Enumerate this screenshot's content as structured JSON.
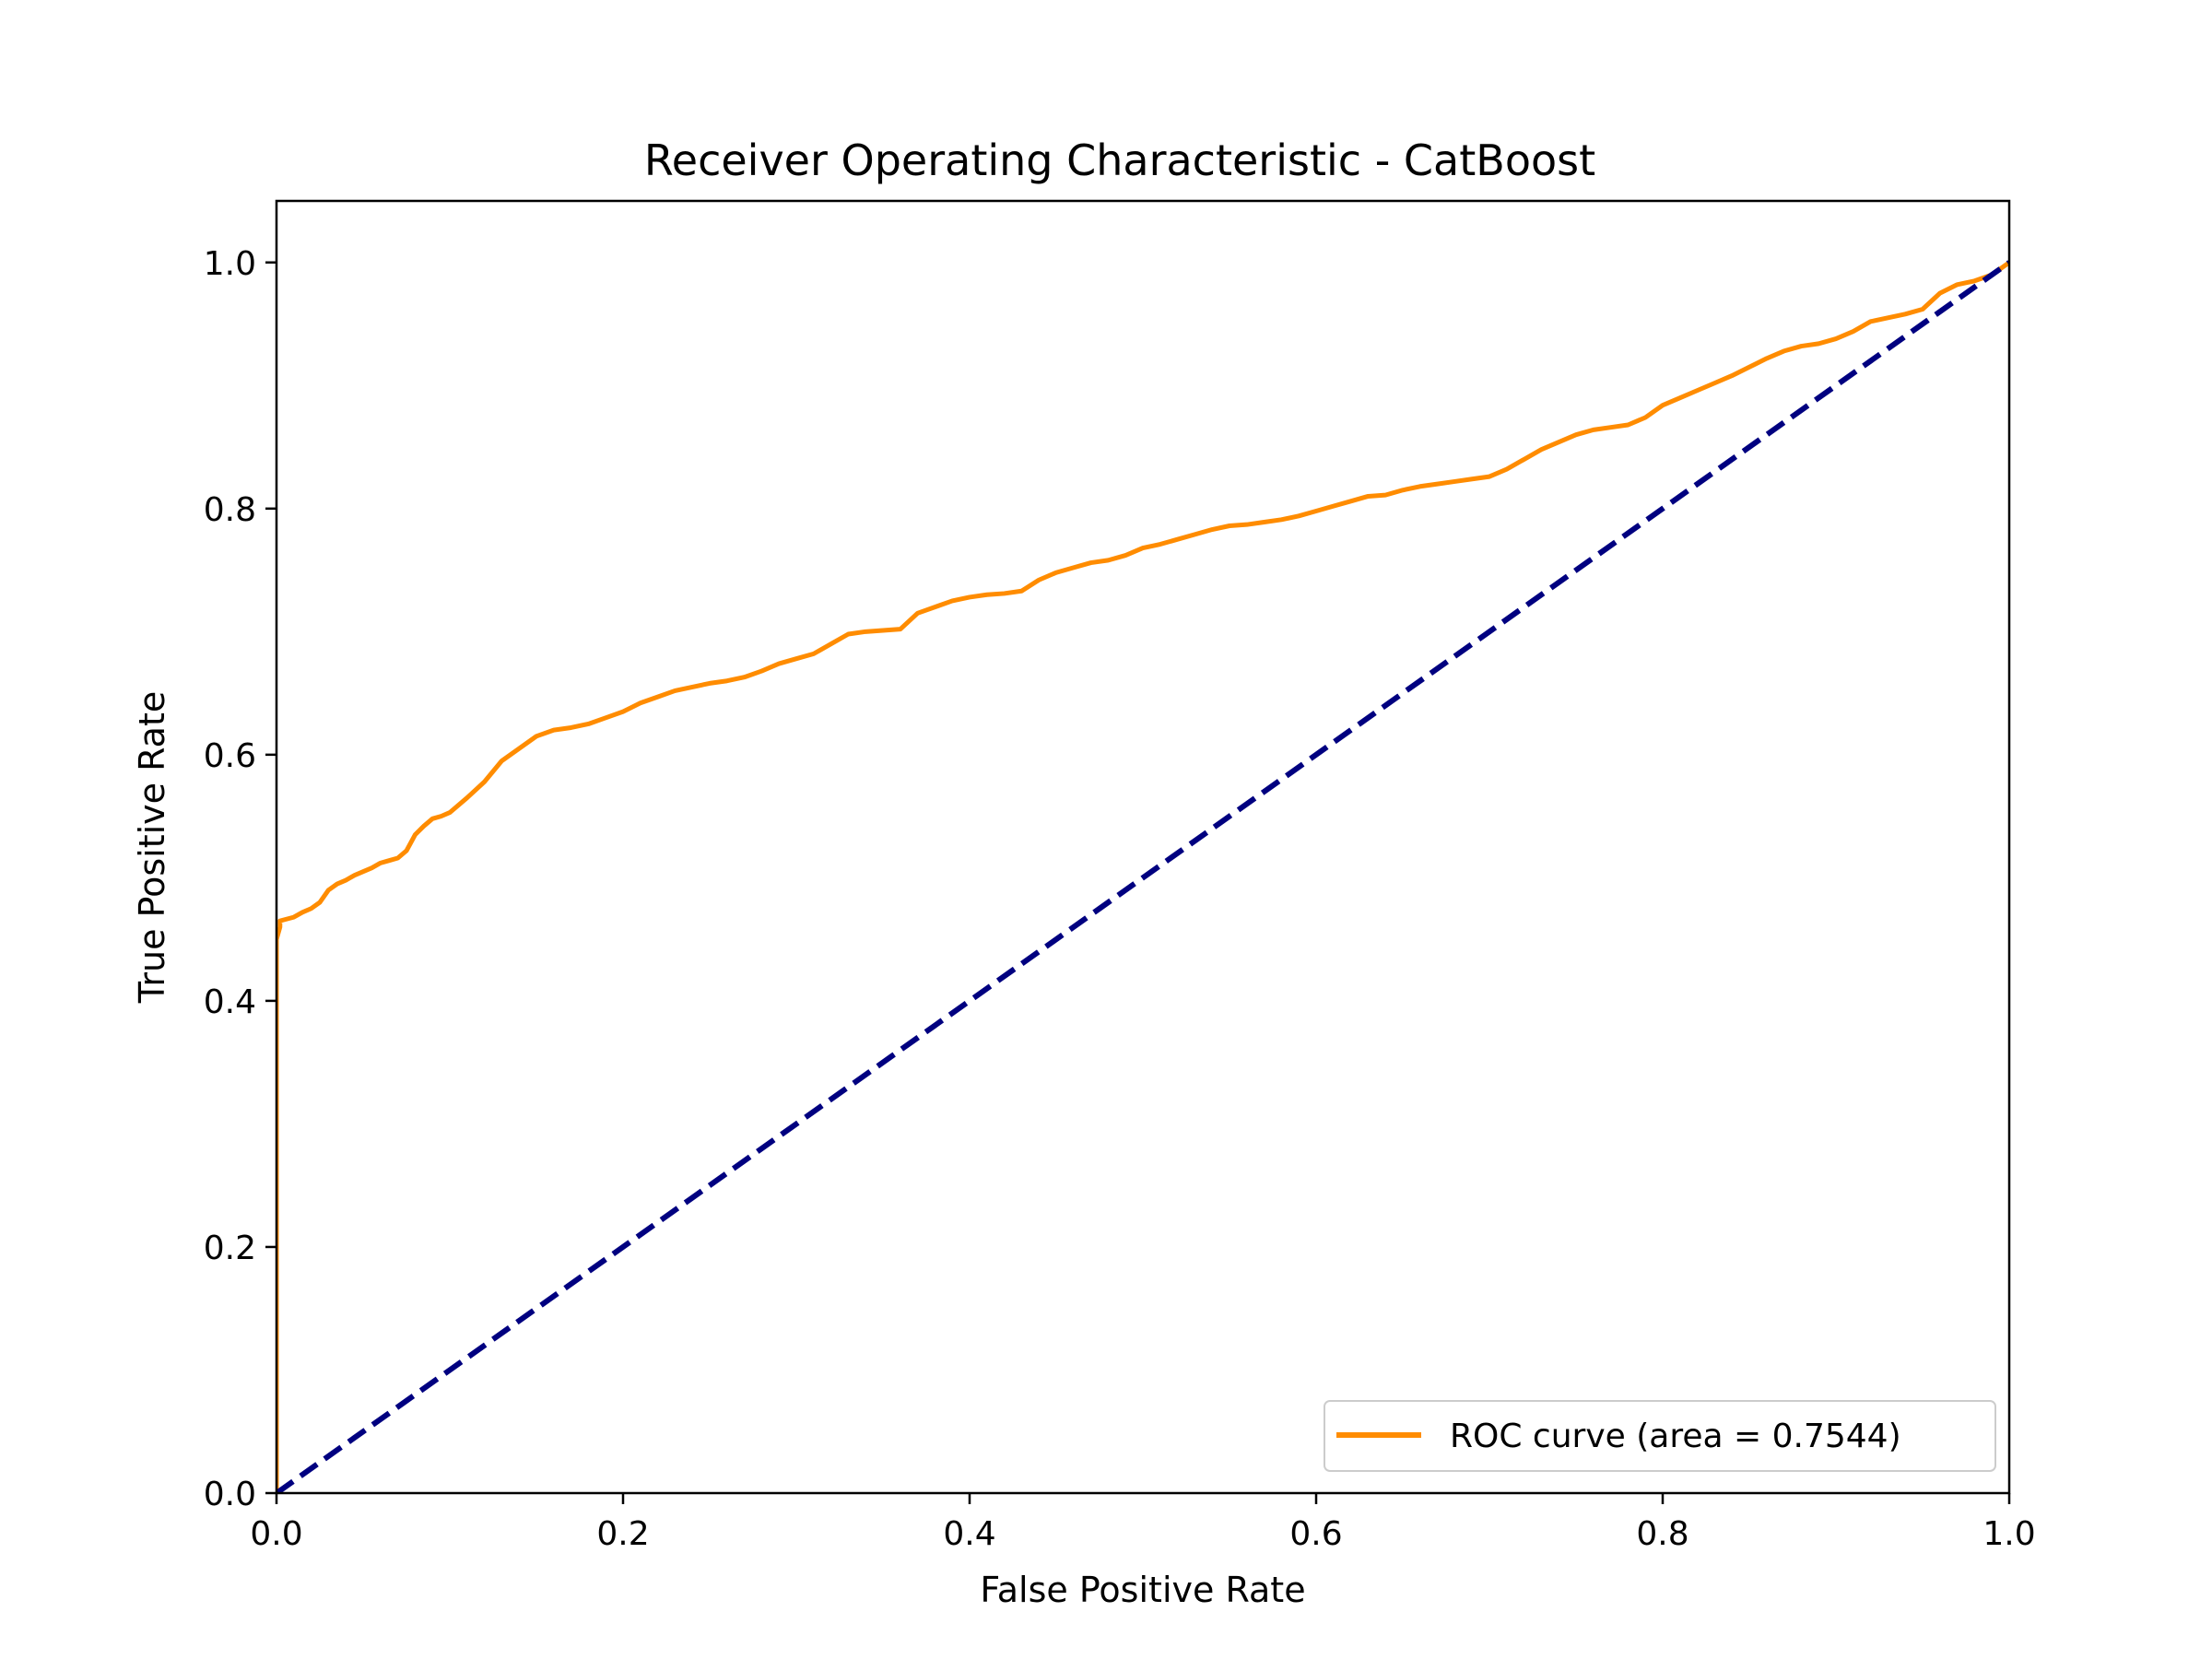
{
  "chart_data": {
    "type": "line",
    "title": "Receiver Operating Characteristic - CatBoost",
    "xlabel": "False Positive Rate",
    "ylabel": "True Positive Rate",
    "xlim": [
      0.0,
      1.0
    ],
    "ylim": [
      0.0,
      1.05
    ],
    "xticks": [
      "0.0",
      "0.2",
      "0.4",
      "0.6",
      "0.8",
      "1.0"
    ],
    "yticks": [
      "0.0",
      "0.2",
      "0.4",
      "0.6",
      "0.8",
      "1.0"
    ],
    "grid": false,
    "legend_position": "lower-right",
    "series": [
      {
        "name": "ROC curve (area = 0.7544)",
        "color": "#ff8c00",
        "style": "solid",
        "x": [
          0.0,
          0.0,
          0.002,
          0.002,
          0.01,
          0.015,
          0.02,
          0.025,
          0.03,
          0.035,
          0.04,
          0.045,
          0.05,
          0.055,
          0.06,
          0.065,
          0.07,
          0.075,
          0.08,
          0.085,
          0.09,
          0.095,
          0.1,
          0.11,
          0.12,
          0.13,
          0.14,
          0.15,
          0.16,
          0.17,
          0.18,
          0.19,
          0.2,
          0.21,
          0.22,
          0.23,
          0.24,
          0.25,
          0.26,
          0.27,
          0.28,
          0.29,
          0.3,
          0.31,
          0.32,
          0.33,
          0.34,
          0.35,
          0.36,
          0.37,
          0.38,
          0.39,
          0.4,
          0.41,
          0.42,
          0.43,
          0.44,
          0.45,
          0.46,
          0.47,
          0.48,
          0.49,
          0.5,
          0.51,
          0.52,
          0.53,
          0.54,
          0.55,
          0.56,
          0.57,
          0.58,
          0.59,
          0.6,
          0.61,
          0.62,
          0.63,
          0.64,
          0.65,
          0.66,
          0.67,
          0.68,
          0.69,
          0.7,
          0.71,
          0.72,
          0.73,
          0.74,
          0.75,
          0.76,
          0.77,
          0.78,
          0.79,
          0.8,
          0.81,
          0.82,
          0.83,
          0.84,
          0.85,
          0.86,
          0.87,
          0.88,
          0.89,
          0.9,
          0.91,
          0.92,
          0.93,
          0.94,
          0.95,
          0.96,
          0.97,
          0.98,
          0.99,
          1.0
        ],
        "y": [
          0.0,
          0.45,
          0.46,
          0.465,
          0.468,
          0.472,
          0.475,
          0.48,
          0.49,
          0.495,
          0.498,
          0.502,
          0.505,
          0.508,
          0.512,
          0.514,
          0.516,
          0.522,
          0.535,
          0.542,
          0.548,
          0.55,
          0.553,
          0.565,
          0.578,
          0.595,
          0.605,
          0.615,
          0.62,
          0.622,
          0.625,
          0.63,
          0.635,
          0.642,
          0.647,
          0.652,
          0.655,
          0.658,
          0.66,
          0.663,
          0.668,
          0.674,
          0.678,
          0.682,
          0.69,
          0.698,
          0.7,
          0.701,
          0.702,
          0.715,
          0.72,
          0.725,
          0.728,
          0.73,
          0.731,
          0.733,
          0.742,
          0.748,
          0.752,
          0.756,
          0.758,
          0.762,
          0.768,
          0.771,
          0.775,
          0.779,
          0.783,
          0.786,
          0.787,
          0.789,
          0.791,
          0.794,
          0.798,
          0.802,
          0.806,
          0.81,
          0.811,
          0.815,
          0.818,
          0.82,
          0.822,
          0.824,
          0.826,
          0.832,
          0.84,
          0.848,
          0.854,
          0.86,
          0.864,
          0.866,
          0.868,
          0.874,
          0.884,
          0.89,
          0.896,
          0.902,
          0.908,
          0.915,
          0.922,
          0.928,
          0.932,
          0.934,
          0.938,
          0.944,
          0.952,
          0.955,
          0.958,
          0.962,
          0.975,
          0.982,
          0.985,
          0.99,
          1.0
        ]
      },
      {
        "name": "",
        "color": "#000080",
        "style": "dashed",
        "x": [
          0.0,
          1.0
        ],
        "y": [
          0.0,
          1.0
        ]
      }
    ],
    "legend": [
      {
        "label": "ROC curve (area = 0.7544)",
        "color": "#ff8c00"
      }
    ]
  }
}
